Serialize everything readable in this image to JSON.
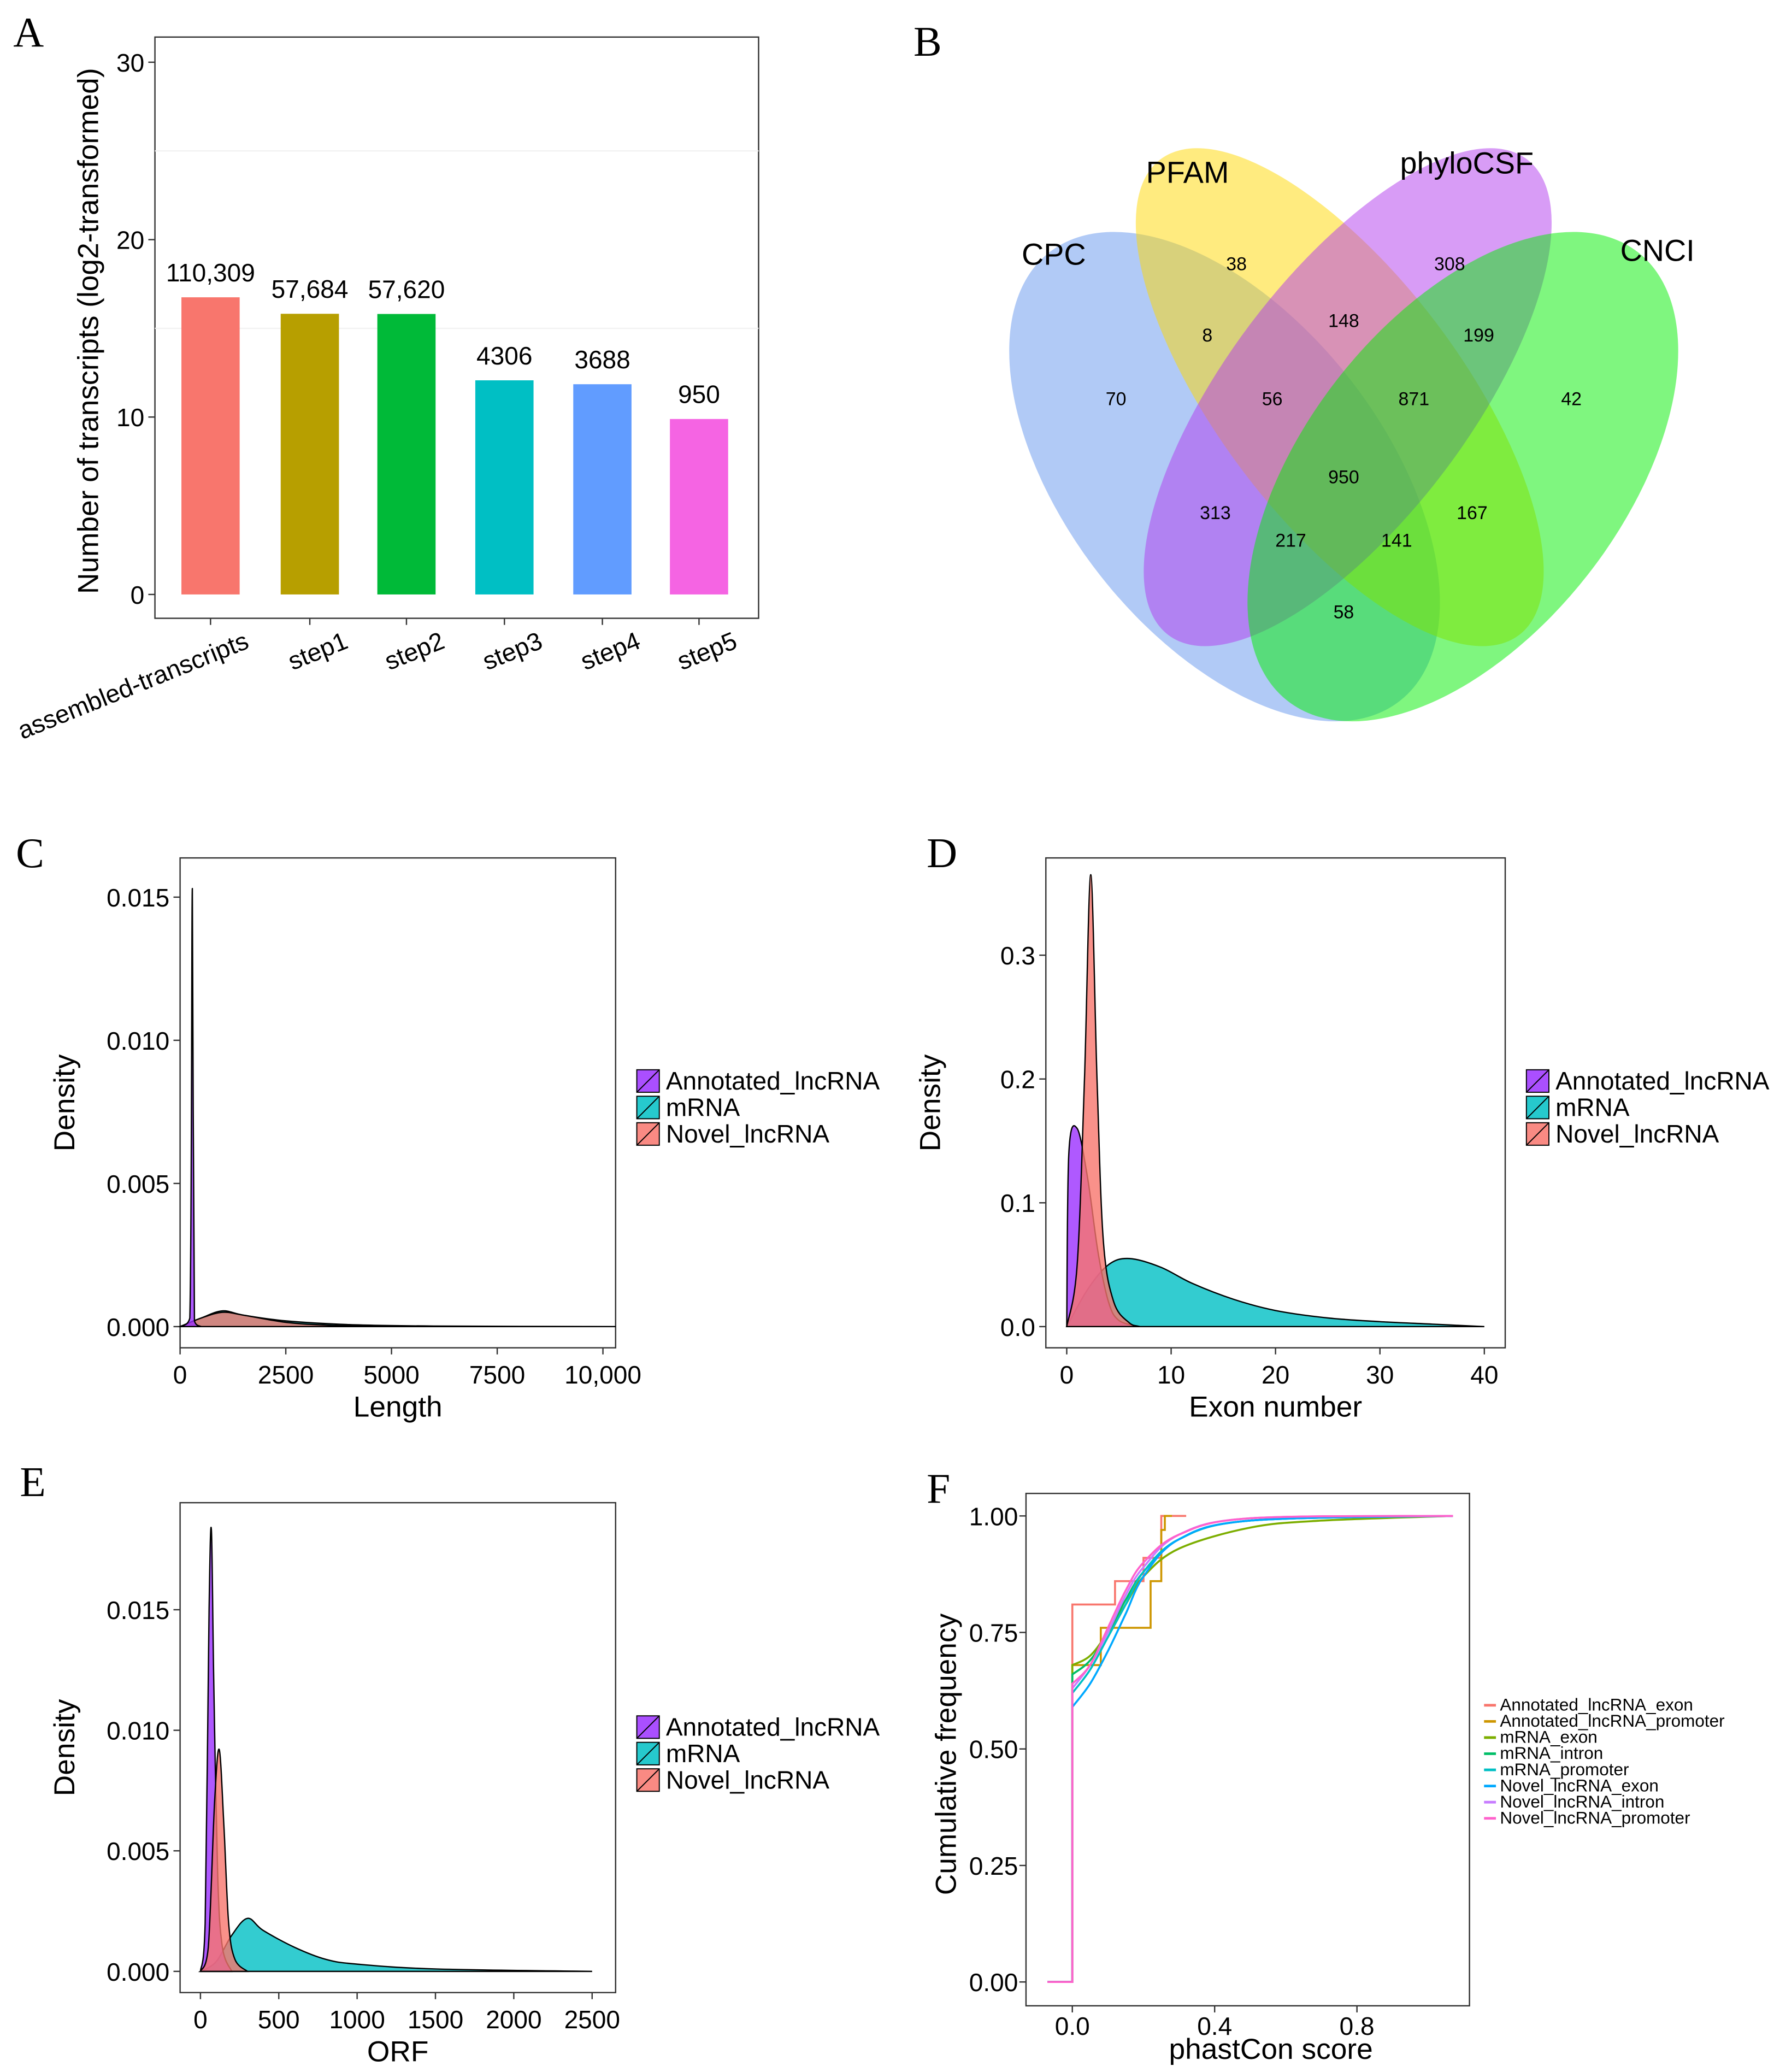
{
  "panel_labels": [
    "A",
    "B",
    "C",
    "D",
    "E",
    "F"
  ],
  "chart_data": [
    {
      "panel": "A",
      "type": "bar",
      "ylabel": "Number of transcripts (log2-transformed)",
      "xlabel": "",
      "ylim": [
        0,
        30
      ],
      "yticks": [
        0,
        10,
        20,
        30
      ],
      "categories": [
        "assembled-transcripts",
        "step1",
        "step2",
        "step3",
        "step4",
        "step5"
      ],
      "values": [
        16.75,
        15.82,
        15.81,
        12.07,
        11.85,
        9.89
      ],
      "data_labels": [
        "110,309",
        "57,684",
        "57,620",
        "4306",
        "3688",
        "950"
      ],
      "colors": [
        "#F8766D",
        "#B79F00",
        "#00BA38",
        "#00BFC4",
        "#619CFF",
        "#F564E3"
      ]
    },
    {
      "panel": "B",
      "type": "venn",
      "sets": [
        {
          "name": "CPC",
          "color": "#6495ED"
        },
        {
          "name": "PFAM",
          "color": "#FFD700"
        },
        {
          "name": "phyloCSF",
          "color": "#B23AEE"
        },
        {
          "name": "CNCI",
          "color": "#00EE00"
        }
      ],
      "regions": {
        "CPC": "70",
        "PFAM": "38",
        "phyloCSF": "308",
        "CNCI": "42",
        "CPC&PFAM": "8",
        "PFAM&phyloCSF": "148",
        "phyloCSF&CNCI": "199",
        "CPC&PFAM&phyloCSF": "56",
        "PFAM&phyloCSF&CNCI": "871",
        "all": "950",
        "CPC&phyloCSF": "313",
        "CPC&phyloCSF&CNCI": "217",
        "CPC&PFAM&CNCI": "141",
        "PFAM&CNCI": "167",
        "CPC&CNCI": "58"
      }
    },
    {
      "panel": "C",
      "type": "area",
      "xlabel": "Length",
      "ylabel": "Density",
      "xlim": [
        0,
        10300
      ],
      "ylim": [
        0,
        0.016
      ],
      "xticks": [
        0,
        2500,
        5000,
        7500,
        10000
      ],
      "xtick_labels": [
        "0",
        "2500",
        "5000",
        "7500",
        "10,000"
      ],
      "yticks": [
        0,
        0.005,
        0.01,
        0.015
      ],
      "ytick_labels": [
        "0.000",
        "0.005",
        "0.010",
        "0.015"
      ],
      "series": [
        {
          "name": "mRNA",
          "color": "#00BFC4",
          "points": [
            [
              0,
              0
            ],
            [
              500,
              0.0003
            ],
            [
              1000,
              0.00055
            ],
            [
              1500,
              0.0004
            ],
            [
              2500,
              0.0002
            ],
            [
              4000,
              7e-05
            ],
            [
              6000,
              2e-05
            ],
            [
              10300,
              0
            ]
          ]
        },
        {
          "name": "Novel_lncRNA",
          "color": "#F8766D",
          "points": [
            [
              0,
              0
            ],
            [
              500,
              0.0003
            ],
            [
              1000,
              0.0005
            ],
            [
              1500,
              0.0004
            ],
            [
              2500,
              0.00015
            ],
            [
              3500,
              5e-05
            ],
            [
              5000,
              0
            ]
          ]
        },
        {
          "name": "Annotated_lncRNA",
          "color": "#9B30FF",
          "points": [
            [
              0,
              0
            ],
            [
              230,
              0.0003
            ],
            [
              290,
              0.0153
            ],
            [
              340,
              0.0002
            ],
            [
              500,
              0
            ]
          ]
        }
      ],
      "legend": [
        "Annotated_lncRNA",
        "mRNA",
        "Novel_lncRNA"
      ]
    },
    {
      "panel": "D",
      "type": "area",
      "xlabel": "Exon number",
      "ylabel": "Density",
      "xlim": [
        -2,
        42
      ],
      "ylim": [
        0,
        0.37
      ],
      "xticks": [
        0,
        10,
        20,
        30,
        40
      ],
      "xtick_labels": [
        "0",
        "10",
        "20",
        "30",
        "40"
      ],
      "yticks": [
        0,
        0.1,
        0.2,
        0.3
      ],
      "ytick_labels": [
        "0.0",
        "0.1",
        "0.2",
        "0.3"
      ],
      "series": [
        {
          "name": "mRNA",
          "color": "#00BFC4",
          "points": [
            [
              0,
              0
            ],
            [
              2,
              0.03
            ],
            [
              4,
              0.05
            ],
            [
              6,
              0.055
            ],
            [
              9,
              0.048
            ],
            [
              12,
              0.035
            ],
            [
              16,
              0.022
            ],
            [
              20,
              0.013
            ],
            [
              25,
              0.007
            ],
            [
              30,
              0.004
            ],
            [
              35,
              0.002
            ],
            [
              40,
              0
            ]
          ]
        },
        {
          "name": "Annotated_lncRNA",
          "color": "#9B30FF",
          "points": [
            [
              0,
              0
            ],
            [
              0.2,
              0.14
            ],
            [
              1,
              0.16
            ],
            [
              2,
              0.12
            ],
            [
              3,
              0.06
            ],
            [
              4,
              0.02
            ],
            [
              5,
              0.005
            ],
            [
              7,
              0
            ]
          ]
        },
        {
          "name": "Novel_lncRNA",
          "color": "#F8766D",
          "points": [
            [
              0,
              0
            ],
            [
              1,
              0.05
            ],
            [
              1.7,
              0.2
            ],
            [
              2.3,
              0.365
            ],
            [
              2.9,
              0.2
            ],
            [
              3.5,
              0.07
            ],
            [
              4.5,
              0.02
            ],
            [
              6,
              0.003
            ],
            [
              7,
              0
            ]
          ]
        }
      ],
      "legend": [
        "Annotated_lncRNA",
        "mRNA",
        "Novel_lncRNA"
      ]
    },
    {
      "panel": "E",
      "type": "area",
      "xlabel": "ORF",
      "ylabel": "Density",
      "xlim": [
        -130,
        2650
      ],
      "ylim": [
        0,
        0.019
      ],
      "xticks": [
        0,
        500,
        1000,
        1500,
        2000,
        2500
      ],
      "xtick_labels": [
        "0",
        "500",
        "1000",
        "1500",
        "2000",
        "2500"
      ],
      "yticks": [
        0,
        0.005,
        0.01,
        0.015
      ],
      "ytick_labels": [
        "0.000",
        "0.005",
        "0.010",
        "0.015"
      ],
      "series": [
        {
          "name": "mRNA",
          "color": "#00BFC4",
          "points": [
            [
              0,
              0
            ],
            [
              100,
              0.0004
            ],
            [
              200,
              0.0015
            ],
            [
              300,
              0.0022
            ],
            [
              400,
              0.0017
            ],
            [
              600,
              0.001
            ],
            [
              800,
              0.0005
            ],
            [
              1000,
              0.0003
            ],
            [
              1500,
              0.0001
            ],
            [
              2500,
              0
            ]
          ]
        },
        {
          "name": "Annotated_lncRNA",
          "color": "#9B30FF",
          "points": [
            [
              0,
              0
            ],
            [
              30,
              0.002
            ],
            [
              55,
              0.015
            ],
            [
              70,
              0.0183
            ],
            [
              85,
              0.012
            ],
            [
              110,
              0.004
            ],
            [
              140,
              0.001
            ],
            [
              200,
              0
            ]
          ]
        },
        {
          "name": "Novel_lncRNA",
          "color": "#F8766D",
          "points": [
            [
              0,
              0
            ],
            [
              50,
              0.001
            ],
            [
              90,
              0.007
            ],
            [
              120,
              0.0092
            ],
            [
              150,
              0.006
            ],
            [
              180,
              0.002
            ],
            [
              220,
              0.0005
            ],
            [
              300,
              0
            ]
          ]
        }
      ],
      "legend": [
        "Annotated_lncRNA",
        "mRNA",
        "Novel_lncRNA"
      ]
    },
    {
      "panel": "F",
      "type": "line",
      "xlabel": "phastCon score",
      "ylabel": "Cumulative frequency",
      "xlim": [
        -0.17,
        1.12
      ],
      "ylim": [
        -0.05,
        1.05
      ],
      "xticks": [
        0,
        0.4,
        0.8
      ],
      "xtick_labels": [
        "0.0",
        "0.4",
        "0.8"
      ],
      "yticks": [
        0,
        0.25,
        0.5,
        0.75,
        1
      ],
      "ytick_labels": [
        "0.00",
        "0.25",
        "0.50",
        "0.75",
        "1.00"
      ],
      "series": [
        {
          "name": "Annotated_lncRNA_exon",
          "color": "#F8766D",
          "step": true,
          "points": [
            [
              -0.07,
              0
            ],
            [
              0,
              0
            ],
            [
              0,
              0.81
            ],
            [
              0.12,
              0.81
            ],
            [
              0.12,
              0.86
            ],
            [
              0.2,
              0.86
            ],
            [
              0.2,
              0.91
            ],
            [
              0.25,
              0.91
            ],
            [
              0.25,
              1
            ],
            [
              0.32,
              1
            ]
          ]
        },
        {
          "name": "Annotated_lncRNA_promoter",
          "color": "#CD9600",
          "step": true,
          "points": [
            [
              -0.07,
              0
            ],
            [
              0,
              0
            ],
            [
              0,
              0.68
            ],
            [
              0.08,
              0.68
            ],
            [
              0.08,
              0.76
            ],
            [
              0.22,
              0.76
            ],
            [
              0.22,
              0.86
            ],
            [
              0.25,
              0.86
            ],
            [
              0.25,
              0.97
            ],
            [
              0.26,
              0.97
            ],
            [
              0.26,
              1
            ],
            [
              0.28,
              1
            ]
          ]
        },
        {
          "name": "mRNA_exon",
          "color": "#7CAE00",
          "points": [
            [
              -0.07,
              0
            ],
            [
              0,
              0
            ],
            [
              0,
              0.68
            ],
            [
              0.05,
              0.7
            ],
            [
              0.1,
              0.75
            ],
            [
              0.15,
              0.81
            ],
            [
              0.2,
              0.87
            ],
            [
              0.3,
              0.93
            ],
            [
              0.5,
              0.975
            ],
            [
              0.7,
              0.99
            ],
            [
              1.07,
              1
            ]
          ]
        },
        {
          "name": "mRNA_intron",
          "color": "#00BE67",
          "points": [
            [
              -0.07,
              0
            ],
            [
              0,
              0
            ],
            [
              0,
              0.66
            ],
            [
              0.05,
              0.69
            ],
            [
              0.1,
              0.75
            ],
            [
              0.15,
              0.82
            ],
            [
              0.2,
              0.88
            ],
            [
              0.3,
              0.95
            ],
            [
              0.5,
              0.99
            ],
            [
              1.07,
              1
            ]
          ]
        },
        {
          "name": "mRNA_promoter",
          "color": "#00BFC4",
          "points": [
            [
              -0.07,
              0
            ],
            [
              0,
              0
            ],
            [
              0,
              0.62
            ],
            [
              0.05,
              0.67
            ],
            [
              0.1,
              0.74
            ],
            [
              0.15,
              0.81
            ],
            [
              0.2,
              0.88
            ],
            [
              0.3,
              0.95
            ],
            [
              0.5,
              0.99
            ],
            [
              1.07,
              1
            ]
          ]
        },
        {
          "name": "Novel_lncRNA_exon",
          "color": "#00A9FF",
          "points": [
            [
              -0.07,
              0
            ],
            [
              0,
              0
            ],
            [
              0,
              0.59
            ],
            [
              0.05,
              0.64
            ],
            [
              0.1,
              0.71
            ],
            [
              0.15,
              0.79
            ],
            [
              0.2,
              0.87
            ],
            [
              0.3,
              0.95
            ],
            [
              0.5,
              0.99
            ],
            [
              1.07,
              1
            ]
          ]
        },
        {
          "name": "Novel_lncRNA_intron",
          "color": "#C77CFF",
          "points": [
            [
              -0.07,
              0
            ],
            [
              0,
              0
            ],
            [
              0,
              0.63
            ],
            [
              0.05,
              0.68
            ],
            [
              0.1,
              0.75
            ],
            [
              0.15,
              0.83
            ],
            [
              0.2,
              0.89
            ],
            [
              0.3,
              0.96
            ],
            [
              0.5,
              0.995
            ],
            [
              1.07,
              1
            ]
          ]
        },
        {
          "name": "Novel_lncRNA_promoter",
          "color": "#FF61CC",
          "points": [
            [
              -0.07,
              0
            ],
            [
              0,
              0
            ],
            [
              0,
              0.64
            ],
            [
              0.05,
              0.68
            ],
            [
              0.1,
              0.76
            ],
            [
              0.15,
              0.84
            ],
            [
              0.2,
              0.9
            ],
            [
              0.3,
              0.96
            ],
            [
              0.5,
              0.995
            ],
            [
              1.07,
              1
            ]
          ]
        }
      ]
    }
  ]
}
